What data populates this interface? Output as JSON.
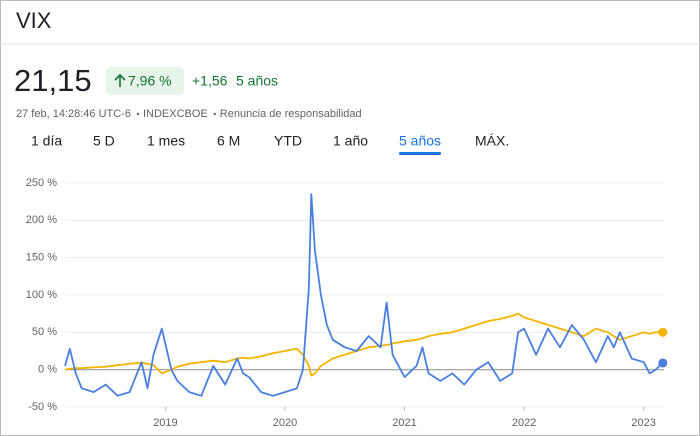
{
  "header": {
    "title": "VIX",
    "price": "21,15",
    "change_percent": "7,96 %",
    "change_abs": "+1,56",
    "period": "5 años",
    "meta": [
      "27 feb, 14:28:46 UTC-6",
      "INDEXCBOE",
      "Renuncia de responsabilidad"
    ]
  },
  "tabs": [
    "1 día",
    "5 D",
    "1 mes",
    "6 M",
    "YTD",
    "1 año",
    "5 años",
    "MÁX."
  ],
  "selected_tab": 6,
  "chart_data": {
    "type": "line",
    "x": [
      2018.16,
      2018.2,
      2018.25,
      2018.3,
      2018.4,
      2018.5,
      2018.6,
      2018.7,
      2018.8,
      2018.85,
      2018.9,
      2018.97,
      2019.05,
      2019.1,
      2019.2,
      2019.3,
      2019.4,
      2019.5,
      2019.6,
      2019.65,
      2019.7,
      2019.8,
      2019.9,
      2020.0,
      2020.1,
      2020.15,
      2020.2,
      2020.22,
      2020.25,
      2020.3,
      2020.35,
      2020.4,
      2020.5,
      2020.6,
      2020.7,
      2020.8,
      2020.85,
      2020.9,
      2021.0,
      2021.1,
      2021.15,
      2021.2,
      2021.3,
      2021.4,
      2021.5,
      2021.6,
      2021.7,
      2021.8,
      2021.9,
      2021.95,
      2022.0,
      2022.1,
      2022.2,
      2022.3,
      2022.4,
      2022.5,
      2022.6,
      2022.7,
      2022.75,
      2022.8,
      2022.9,
      2023.0,
      2023.05,
      2023.1,
      2023.16
    ],
    "series": [
      {
        "color": "#4a7fe0",
        "values": [
          5,
          28,
          -5,
          -25,
          -30,
          -20,
          -35,
          -30,
          10,
          -25,
          20,
          55,
          0,
          -15,
          -30,
          -35,
          5,
          -20,
          15,
          -5,
          -10,
          -30,
          -35,
          -30,
          -25,
          0,
          110,
          235,
          160,
          100,
          60,
          40,
          30,
          25,
          45,
          30,
          90,
          20,
          -10,
          5,
          30,
          -5,
          -15,
          -5,
          -20,
          0,
          10,
          -15,
          -5,
          50,
          55,
          20,
          55,
          30,
          60,
          40,
          10,
          45,
          30,
          50,
          15,
          10,
          -5,
          0,
          9
        ]
      },
      {
        "color": "#f4b400",
        "values": [
          0,
          1,
          2,
          2,
          3,
          4,
          6,
          8,
          9,
          8,
          6,
          -5,
          0,
          4,
          8,
          10,
          12,
          10,
          15,
          16,
          15,
          18,
          22,
          25,
          28,
          20,
          5,
          -8,
          -5,
          5,
          10,
          15,
          20,
          25,
          30,
          32,
          33,
          35,
          38,
          40,
          42,
          45,
          48,
          50,
          55,
          60,
          65,
          68,
          72,
          75,
          70,
          65,
          60,
          55,
          50,
          45,
          55,
          50,
          45,
          40,
          45,
          50,
          48,
          50,
          50
        ]
      }
    ],
    "xlim": [
      2018.16,
      2023.17
    ],
    "xticks": [
      2019,
      2020,
      2021,
      2022,
      2023
    ],
    "ylim": [
      -50,
      250
    ],
    "yticks": [
      {
        "value": -50,
        "label": "-50 %"
      },
      {
        "value": 0,
        "label": "0 %"
      },
      {
        "value": 50,
        "label": "50 %"
      },
      {
        "value": 100,
        "label": "100 %"
      },
      {
        "value": 150,
        "label": "150 %"
      },
      {
        "value": 200,
        "label": "200 %"
      },
      {
        "value": 250,
        "label": "250 %"
      }
    ],
    "grid": true
  }
}
